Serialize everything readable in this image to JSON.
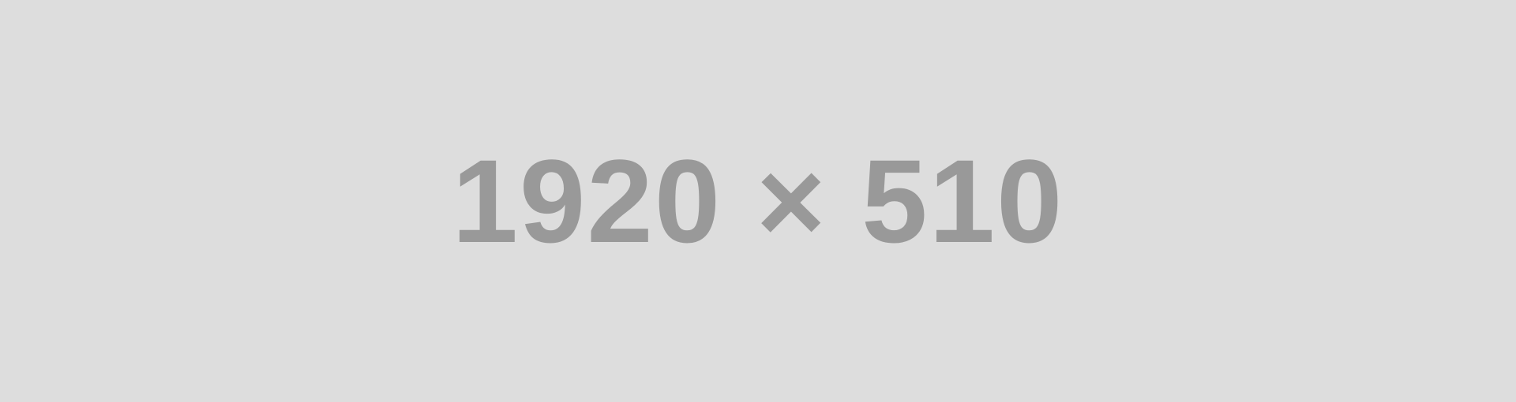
{
  "placeholder": {
    "text": "1920 × 510"
  },
  "colors": {
    "background": "#dddddd",
    "text": "#999999"
  }
}
